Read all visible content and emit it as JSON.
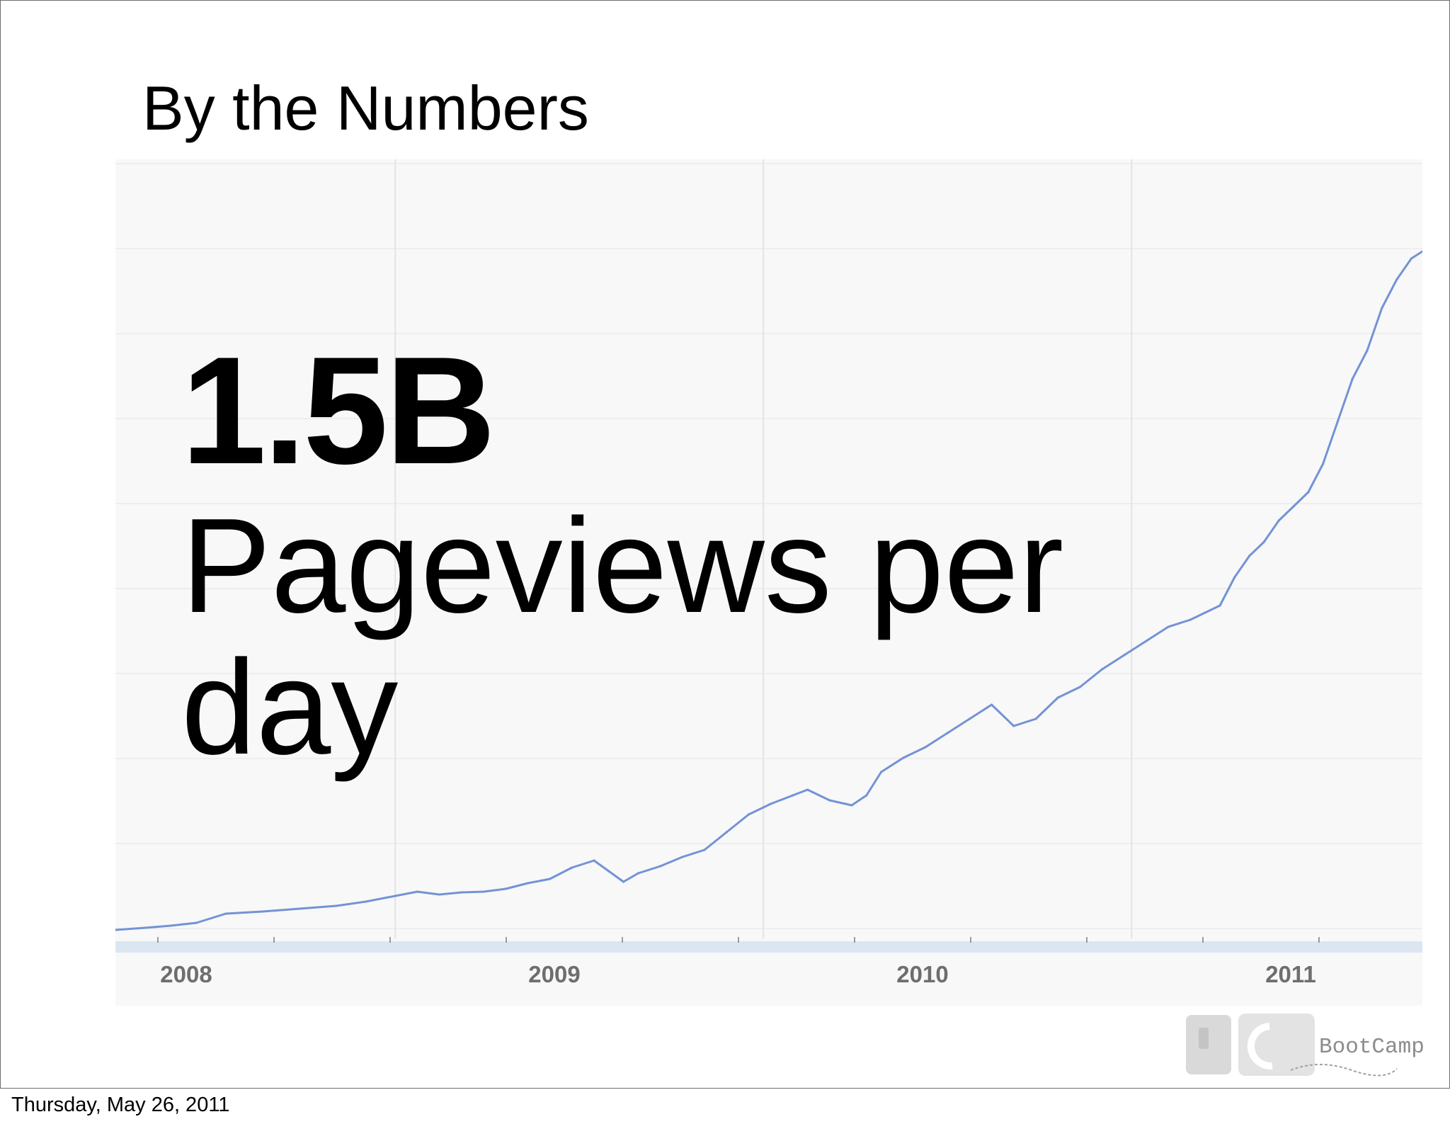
{
  "slide": {
    "title": "By the Numbers",
    "headline_number": "1.5B",
    "headline_caption": "Pageviews per day",
    "footer_date": "Thursday, May 26, 2011",
    "logo_text": "BootCamp"
  },
  "colors": {
    "line": "#7393d6",
    "grid": "#e3e3e3",
    "plot_bg": "#f8f8f8",
    "axis_band": "#dbe6f2",
    "tick_label": "#6e6e6e"
  },
  "chart_data": {
    "type": "line",
    "title": "",
    "xlabel": "",
    "ylabel": "",
    "x_tick_labels": [
      "2008",
      "2009",
      "2010",
      "2011"
    ],
    "x_tick_positions": [
      2008.0,
      2009.0,
      2010.0,
      2011.0
    ],
    "xlim": [
      2007.9,
      2011.45
    ],
    "ylim": [
      0,
      1.0
    ],
    "y_units": "relative scale (unlabeled axis)",
    "grid": true,
    "legend": "none",
    "series": [
      {
        "values_x": [
          2007.9,
          2007.98,
          2008.05,
          2008.12,
          2008.2,
          2008.3,
          2008.4,
          2008.5,
          2008.58,
          2008.66,
          2008.72,
          2008.78,
          2008.84,
          2008.9,
          2008.96,
          2009.02,
          2009.08,
          2009.14,
          2009.2,
          2009.24,
          2009.28,
          2009.32,
          2009.38,
          2009.44,
          2009.5,
          2009.56,
          2009.62,
          2009.68,
          2009.74,
          2009.78,
          2009.84,
          2009.9,
          2009.94,
          2009.98,
          2010.04,
          2010.1,
          2010.16,
          2010.22,
          2010.28,
          2010.34,
          2010.4,
          2010.46,
          2010.52,
          2010.58,
          2010.64,
          2010.7,
          2010.76,
          2010.82,
          2010.86,
          2010.9,
          2010.94,
          2010.98,
          2011.02,
          2011.06,
          2011.1,
          2011.14,
          2011.18,
          2011.22,
          2011.26,
          2011.3,
          2011.34,
          2011.38,
          2011.42,
          2011.45
        ],
        "values_y": [
          0.002,
          0.005,
          0.008,
          0.012,
          0.025,
          0.028,
          0.032,
          0.036,
          0.042,
          0.05,
          0.056,
          0.052,
          0.055,
          0.056,
          0.06,
          0.068,
          0.074,
          0.09,
          0.1,
          0.085,
          0.07,
          0.082,
          0.092,
          0.105,
          0.115,
          0.14,
          0.165,
          0.18,
          0.192,
          0.2,
          0.185,
          0.178,
          0.192,
          0.225,
          0.245,
          0.26,
          0.28,
          0.3,
          0.32,
          0.29,
          0.3,
          0.33,
          0.345,
          0.37,
          0.39,
          0.41,
          0.43,
          0.44,
          0.45,
          0.46,
          0.5,
          0.53,
          0.55,
          0.58,
          0.6,
          0.62,
          0.66,
          0.72,
          0.78,
          0.82,
          0.88,
          0.92,
          0.95,
          0.96
        ]
      }
    ]
  }
}
